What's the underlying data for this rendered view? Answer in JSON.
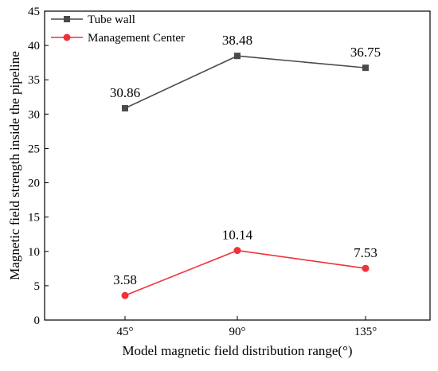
{
  "chart_data": {
    "type": "line",
    "categories": [
      "45°",
      "90°",
      "135°"
    ],
    "series": [
      {
        "name": "Tube wall",
        "values": [
          30.86,
          38.48,
          36.75
        ],
        "color": "#4a4a4a",
        "marker": "square"
      },
      {
        "name": "Management Center",
        "values": [
          3.58,
          10.14,
          7.53
        ],
        "color": "#f0313a",
        "marker": "circle"
      }
    ],
    "data_labels": [
      [
        "30.86",
        "38.48",
        "36.75"
      ],
      [
        "3.58",
        "10.14",
        "7.53"
      ]
    ],
    "xlabel": "Model magnetic field distribution range(°)",
    "ylabel": "Magnetic field strength inside the pipeline",
    "ylim": [
      0,
      45
    ],
    "yticks": [
      "0",
      "5",
      "10",
      "15",
      "20",
      "25",
      "30",
      "35",
      "40",
      "45"
    ],
    "grid": false,
    "legend_position": "top-left"
  }
}
